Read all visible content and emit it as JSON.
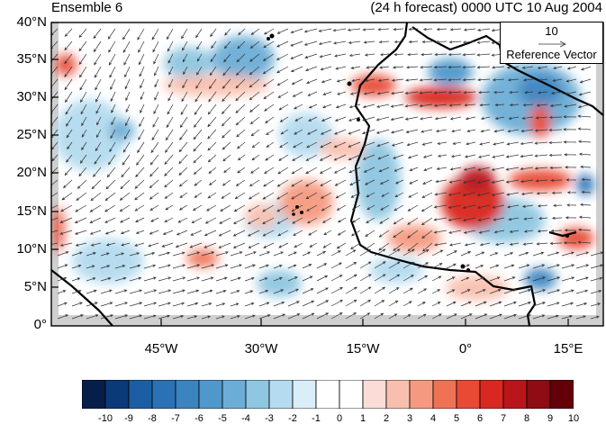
{
  "title": {
    "left": "Ensemble 6",
    "right": "(24 h forecast) 0000 UTC 10 Aug 2004"
  },
  "reference_vector": {
    "magnitude": "10",
    "label": "Reference Vector"
  },
  "axes": {
    "y_ticks": [
      "40°N",
      "35°N",
      "30°N",
      "25°N",
      "20°N",
      "15°N",
      "10°N",
      "5°N",
      "0°"
    ],
    "x_ticks": [
      "45°W",
      "30°W",
      "15°W",
      "0°",
      "15°E"
    ]
  },
  "colorbar": {
    "labels": [
      "-10",
      "-9",
      "-8",
      "-7",
      "-6",
      "-5",
      "-4",
      "-3",
      "-2",
      "-1",
      "0",
      "1",
      "2",
      "3",
      "4",
      "5",
      "6",
      "7",
      "8",
      "9",
      "10"
    ],
    "colors": [
      "#061f4a",
      "#0b3a7a",
      "#1c5ea4",
      "#2a72b5",
      "#3a84c0",
      "#4f98cb",
      "#6cadd6",
      "#8fc6e1",
      "#b4dbef",
      "#d9eef8",
      "#ffffff",
      "#ffffff",
      "#fbdcd6",
      "#f9bfae",
      "#f59a80",
      "#ef7254",
      "#e84a34",
      "#d9281f",
      "#b8161a",
      "#8e0c14",
      "#640007"
    ]
  },
  "colors": {
    "land_fill": "#cfcfcf",
    "coast": "#000000",
    "arrow": "#333333"
  }
}
